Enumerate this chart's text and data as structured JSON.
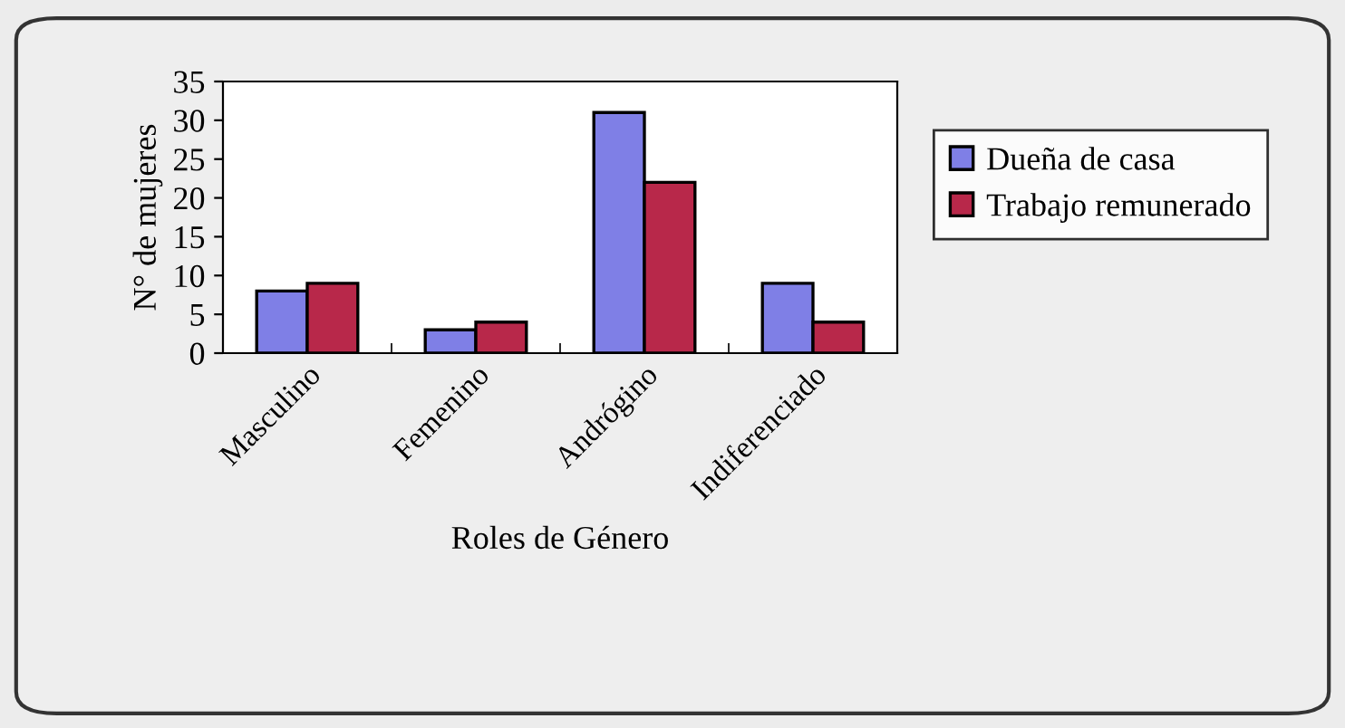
{
  "chart_data": {
    "type": "bar",
    "xlabel": "Roles de Género",
    "ylabel": "N° de mujeres",
    "categories": [
      "Masculino",
      "Femenino",
      "Andrógino",
      "Indiferenciado"
    ],
    "series": [
      {
        "name": "Dueña de casa",
        "color": "#7f7fe6",
        "values": [
          8,
          3,
          31,
          9
        ]
      },
      {
        "name": "Trabajo remunerado",
        "color": "#b8284a",
        "values": [
          9,
          4,
          22,
          4
        ]
      }
    ],
    "ylim": [
      0,
      35
    ],
    "yticks": [
      0,
      5,
      10,
      15,
      20,
      25,
      30,
      35
    ],
    "grid": false,
    "legend": "right"
  }
}
